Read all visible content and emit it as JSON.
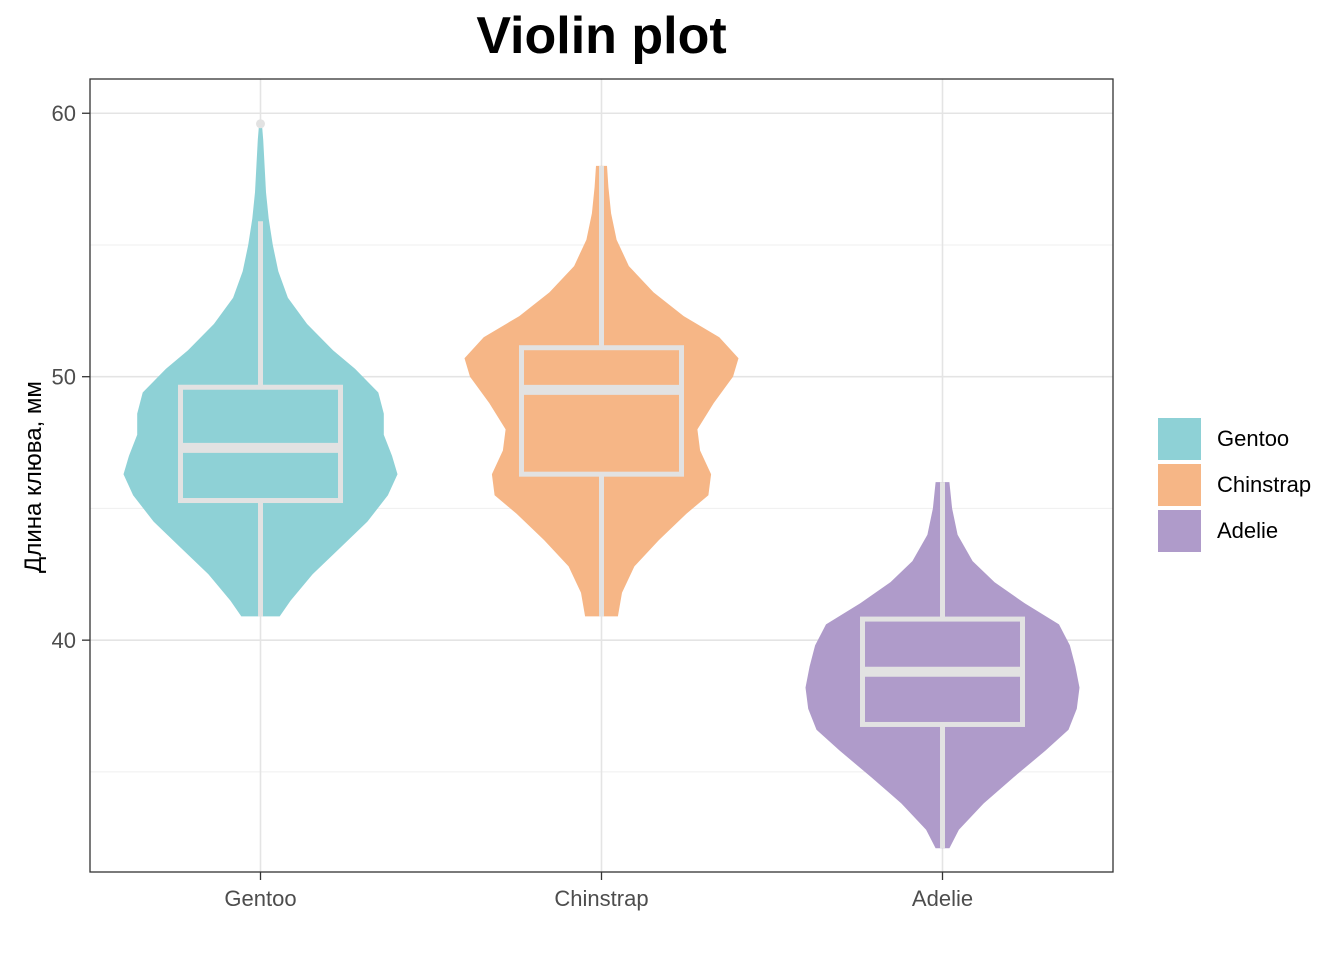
{
  "chart_data": {
    "type": "violin",
    "title": "Violin plot",
    "xlabel": "",
    "ylabel": "Длина клюва, мм",
    "categories": [
      "Gentoo",
      "Chinstrap",
      "Adelie"
    ],
    "ylim": [
      31.2,
      61.3
    ],
    "yticks": [
      40,
      50,
      60
    ],
    "grid": true,
    "legend": "right",
    "series": [
      {
        "name": "Gentoo",
        "color": "#8ED1D6",
        "min": 40.9,
        "max": 59.6,
        "whisker_low": 40.9,
        "whisker_high": 55.9,
        "q1": 45.3,
        "median": 47.3,
        "q3": 49.6,
        "outliers": [
          59.6
        ],
        "density": [
          [
            40.9,
            0.14
          ],
          [
            41.5,
            0.22
          ],
          [
            42.5,
            0.38
          ],
          [
            43.5,
            0.58
          ],
          [
            44.5,
            0.78
          ],
          [
            45.5,
            0.93
          ],
          [
            46.3,
            1.0
          ],
          [
            47.0,
            0.96
          ],
          [
            47.8,
            0.9
          ],
          [
            48.6,
            0.9
          ],
          [
            49.4,
            0.86
          ],
          [
            50.3,
            0.69
          ],
          [
            51.0,
            0.53
          ],
          [
            52.0,
            0.34
          ],
          [
            53.0,
            0.2
          ],
          [
            54.0,
            0.13
          ],
          [
            55.0,
            0.09
          ],
          [
            56.0,
            0.06
          ],
          [
            57.0,
            0.04
          ],
          [
            58.0,
            0.03
          ],
          [
            59.0,
            0.02
          ],
          [
            59.6,
            0.01
          ]
        ]
      },
      {
        "name": "Chinstrap",
        "color": "#F6B686",
        "min": 40.9,
        "max": 58.0,
        "whisker_low": 40.9,
        "whisker_high": 58.0,
        "q1": 46.3,
        "median": 49.5,
        "q3": 51.1,
        "outliers": [],
        "density": [
          [
            40.9,
            0.12
          ],
          [
            41.8,
            0.15
          ],
          [
            42.8,
            0.24
          ],
          [
            43.8,
            0.42
          ],
          [
            44.8,
            0.62
          ],
          [
            45.5,
            0.78
          ],
          [
            46.3,
            0.8
          ],
          [
            47.2,
            0.72
          ],
          [
            48.0,
            0.7
          ],
          [
            49.0,
            0.82
          ],
          [
            50.0,
            0.96
          ],
          [
            50.7,
            1.0
          ],
          [
            51.5,
            0.86
          ],
          [
            52.3,
            0.6
          ],
          [
            53.2,
            0.38
          ],
          [
            54.2,
            0.2
          ],
          [
            55.2,
            0.11
          ],
          [
            56.2,
            0.07
          ],
          [
            57.2,
            0.05
          ],
          [
            58.0,
            0.04
          ]
        ]
      },
      {
        "name": "Adelie",
        "color": "#AF9BCA",
        "min": 32.1,
        "max": 46.0,
        "whisker_low": 32.1,
        "whisker_high": 46.0,
        "q1": 36.8,
        "median": 38.8,
        "q3": 40.8,
        "outliers": [],
        "density": [
          [
            32.1,
            0.05
          ],
          [
            32.8,
            0.12
          ],
          [
            33.8,
            0.3
          ],
          [
            34.8,
            0.52
          ],
          [
            35.8,
            0.75
          ],
          [
            36.6,
            0.92
          ],
          [
            37.4,
            0.98
          ],
          [
            38.2,
            1.0
          ],
          [
            39.0,
            0.97
          ],
          [
            39.8,
            0.93
          ],
          [
            40.6,
            0.85
          ],
          [
            41.4,
            0.6
          ],
          [
            42.2,
            0.38
          ],
          [
            43.0,
            0.22
          ],
          [
            44.0,
            0.11
          ],
          [
            45.0,
            0.07
          ],
          [
            46.0,
            0.05
          ]
        ]
      }
    ]
  }
}
